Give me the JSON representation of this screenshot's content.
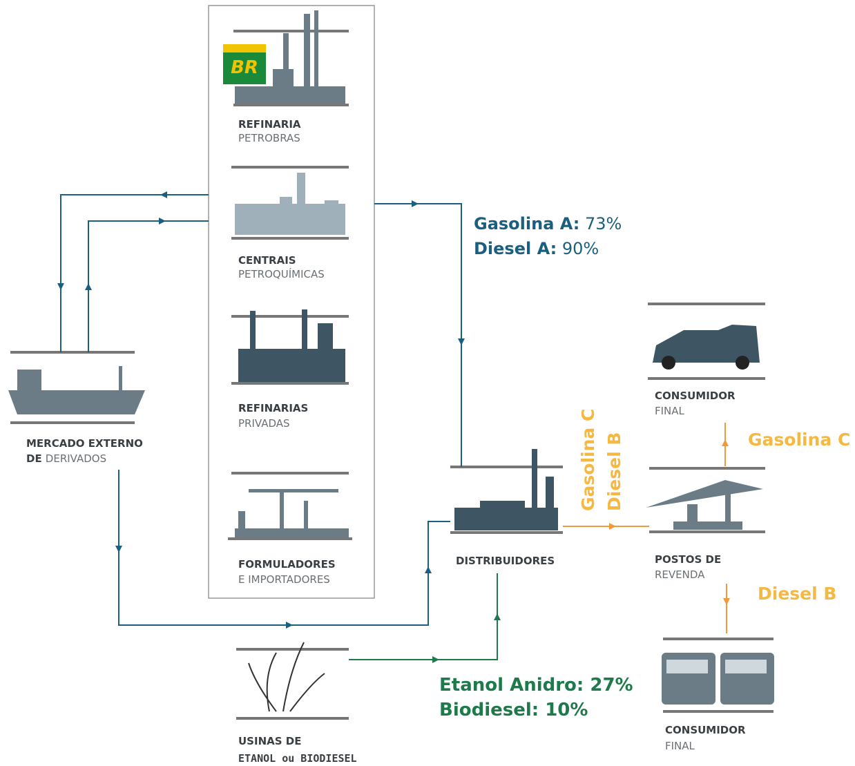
{
  "logo": "BR",
  "nodes": {
    "refinaria": {
      "title": "REFINARIA",
      "subtitle": "PETROBRAS"
    },
    "centrais": {
      "title": "CENTRAIS",
      "subtitle": "PETROQUÍMICAS"
    },
    "refinarias_privadas": {
      "title": "REFINARIAS",
      "subtitle": "PRIVADAS"
    },
    "formuladores": {
      "title": "FORMULADORES",
      "subtitle": "E IMPORTADORES"
    },
    "mercado_externo": {
      "title": "MERCADO EXTERNO",
      "title2": "DE",
      "subtitle": "DERIVADOS"
    },
    "distribuidores": {
      "title": "DISTRIBUIDORES"
    },
    "usinas": {
      "title": "USINAS DE",
      "subtitle": "ETANOL ou BIODIESEL"
    },
    "postos": {
      "title": "POSTOS DE",
      "subtitle": "REVENDA"
    },
    "consumidor_1": {
      "title": "CONSUMIDOR",
      "subtitle": "FINAL"
    },
    "consumidor_2": {
      "title": "CONSUMIDOR",
      "subtitle": "FINAL"
    }
  },
  "fossil_shares": [
    {
      "name": "Gasolina A:",
      "value": "73%"
    },
    {
      "name": "Diesel A:",
      "value": "90%"
    }
  ],
  "bio_shares": [
    "Etanol Anidro: 27%",
    "Biodiesel: 10%"
  ],
  "fuel_labels": {
    "to_postos": [
      "Gasolina C",
      "Diesel B"
    ],
    "to_car": "Gasolina C",
    "to_truck": "Diesel B"
  }
}
